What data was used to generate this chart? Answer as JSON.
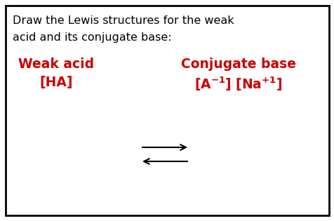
{
  "title_line1": "Draw the Lewis structures for the weak",
  "title_line2": "acid and its conjugate base:",
  "weak_acid_label": "Weak acid",
  "weak_acid_formula": "[HA]",
  "conj_base_label": "Conjugate base",
  "conj_base_formula_left": "[A",
  "conj_base_formula_right": "] [Na",
  "text_color_black": "#000000",
  "text_color_red": "#cc0000",
  "bg_color": "#ffffff",
  "border_color": "#000000",
  "title_fontsize": 11.5,
  "label_fontsize": 13.5,
  "arrow_color": "#000000"
}
